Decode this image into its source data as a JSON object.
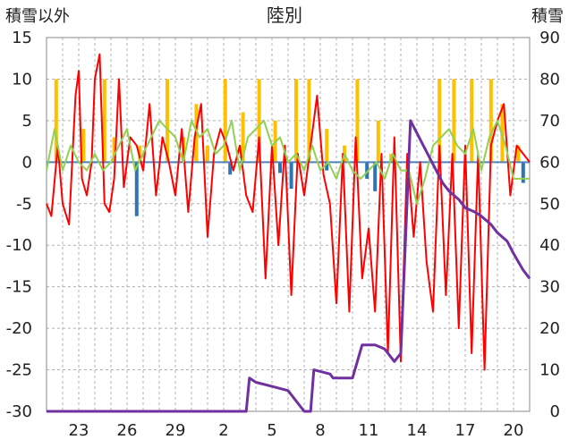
{
  "chart_data": {
    "type": "line",
    "title": "陸別",
    "left_axis_label": "積雪以外",
    "right_axis_label": "積雪",
    "left_axis": {
      "min": -30,
      "max": 15,
      "step": 5
    },
    "right_axis": {
      "min": 0,
      "max": 90,
      "step": 10
    },
    "x_tick_labels": [
      "23",
      "26",
      "29",
      "2",
      "5",
      "8",
      "11",
      "14",
      "17",
      "20"
    ],
    "grid": true,
    "colors": {
      "precip": "#FFC000",
      "negative": "#2E75B6",
      "temperature": "#FF0000",
      "humidity_diff": "#92D050",
      "snow_depth": "#7030A0",
      "zero_line": "#4F81BD"
    },
    "series": [
      {
        "axis": "left",
        "kind": "bar",
        "values_note": "",
        "x": [
          21.6,
          23.3,
          24.6,
          25.2,
          26.8,
          28.5,
          29.5,
          30.3,
          31.0,
          32.1,
          33.2,
          34.2,
          35.2,
          36.5,
          37.3,
          38.4,
          39.5,
          40.3,
          41.6,
          42.4,
          45.4,
          46.3,
          47.4,
          48.6,
          49.3,
          50.3
        ],
        "y": [
          10,
          4,
          10,
          3,
          2,
          10,
          3,
          7,
          2,
          10,
          6,
          10,
          5,
          10,
          10,
          4,
          2,
          10,
          5,
          1,
          10,
          10,
          10,
          10,
          7,
          2
        ]
      },
      {
        "axis": "left",
        "kind": "bar",
        "x": [
          26.6,
          32.4,
          35.5,
          36.2,
          38.4,
          40.9,
          41.4,
          50.6
        ],
        "y": [
          -6.5,
          -1.5,
          -1.3,
          -3.2,
          -1.0,
          -2.0,
          -3.5,
          -2.5
        ]
      },
      {
        "axis": "left",
        "kind": "line",
        "x": [
          21,
          21.3,
          21.7,
          22.0,
          22.4,
          22.8,
          23.0,
          23.2,
          23.5,
          23.8,
          24.0,
          24.3,
          24.6,
          24.9,
          25.2,
          25.5,
          25.8,
          26.2,
          26.6,
          27.0,
          27.4,
          27.8,
          28.2,
          28.6,
          29.0,
          29.4,
          29.8,
          30.2,
          30.6,
          31.0,
          31.4,
          31.8,
          32.2,
          32.6,
          33.0,
          33.4,
          33.8,
          34.2,
          34.6,
          35.0,
          35.4,
          35.8,
          36.2,
          36.6,
          37.0,
          37.4,
          37.8,
          38.2,
          38.6,
          39.0,
          39.4,
          39.8,
          40.2,
          40.6,
          41.0,
          41.4,
          41.8,
          42.2,
          42.6,
          43.0,
          43.4,
          43.8,
          44.2,
          44.6,
          45.0,
          45.4,
          45.8,
          46.2,
          46.6,
          47.0,
          47.4,
          47.8,
          48.2,
          48.6,
          49.0,
          49.4,
          49.8,
          50.2,
          50.6,
          51.0
        ],
        "y": [
          -5,
          -6.5,
          2,
          -5,
          -7.5,
          8,
          11,
          -2,
          -4,
          0,
          10,
          13,
          -5,
          -6,
          -2,
          10,
          -3,
          3,
          2,
          -1,
          7,
          -4,
          3,
          0,
          -4,
          4,
          -6,
          3,
          7,
          -9,
          1,
          4,
          2,
          -1,
          2,
          -4,
          -6,
          3,
          -14,
          2,
          -10,
          2,
          -16,
          1,
          -4,
          2,
          8,
          -1.5,
          -5,
          -17,
          1,
          -18,
          3,
          -14,
          -8,
          -18,
          1,
          -23,
          3,
          -24,
          1,
          -9,
          0,
          -12,
          -18,
          2,
          -16,
          1,
          -20,
          2,
          -23,
          1,
          -25,
          2,
          5,
          7,
          -4,
          2,
          1,
          0
        ]
      },
      {
        "axis": "left",
        "kind": "line",
        "x": [
          21,
          21.5,
          22.0,
          22.5,
          23.0,
          23.5,
          24.0,
          24.5,
          25.0,
          25.5,
          26.0,
          26.5,
          27.0,
          27.5,
          28.0,
          28.5,
          29.0,
          29.5,
          30.0,
          30.5,
          31.0,
          31.5,
          32.0,
          32.5,
          33.0,
          33.5,
          34.0,
          34.5,
          35.0,
          35.5,
          36.0,
          36.5,
          37.0,
          37.5,
          38.0,
          38.5,
          39.0,
          39.5,
          40.0,
          40.5,
          41.0,
          41.5,
          42.0,
          42.5,
          43.0,
          43.5,
          44.0,
          44.5,
          45.0,
          45.5,
          46.0,
          46.5,
          47.0,
          47.5,
          48.0,
          48.5,
          49.0,
          49.5,
          50.0,
          50.5,
          51.0
        ],
        "y": [
          -1,
          4,
          -1,
          2,
          0,
          -1,
          1,
          -1,
          0,
          2,
          4,
          -1,
          1,
          3,
          5,
          4,
          3,
          0,
          5,
          3,
          4,
          1,
          2,
          5,
          -1,
          3,
          4,
          5,
          2,
          3,
          0,
          1,
          -1,
          2,
          -1,
          0,
          -2,
          1,
          -1,
          -2,
          -1,
          0,
          -2,
          1,
          -1,
          -1,
          -5,
          -2,
          2,
          3,
          4,
          2,
          1,
          4,
          -1,
          3,
          5,
          2,
          -2,
          -2,
          -2
        ]
      },
      {
        "axis": "right",
        "kind": "line",
        "x": [
          21,
          25,
          29,
          32,
          33.4,
          33.6,
          34.0,
          35.0,
          36.0,
          37.0,
          37.2,
          37.4,
          37.6,
          38.6,
          38.8,
          39.0,
          39.4,
          40.0,
          40.6,
          41.0,
          41.4,
          42.0,
          42.6,
          43.0,
          43.6,
          44.0,
          44.4,
          44.8,
          45.2,
          45.6,
          46.0,
          46.6,
          47.0,
          47.6,
          48.0,
          48.6,
          49.0,
          49.6,
          50.0,
          50.6,
          51.0
        ],
        "y": [
          0,
          0,
          0,
          0,
          0,
          8,
          7,
          6,
          5,
          0,
          0,
          0,
          10,
          9,
          8,
          8,
          8,
          8,
          16,
          16,
          16,
          15,
          12,
          14,
          70,
          67,
          64,
          61,
          58,
          55,
          53,
          51,
          49,
          48,
          47,
          45,
          43,
          41,
          38,
          34,
          32
        ]
      }
    ]
  }
}
